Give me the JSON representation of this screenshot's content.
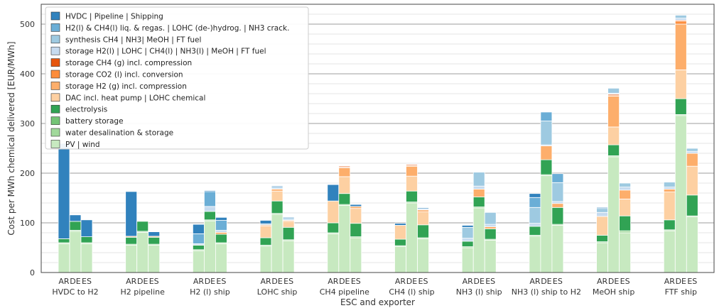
{
  "chart_data": {
    "type": "bar",
    "stacked": true,
    "xlabel": "ESC and exporter",
    "ylabel": "Cost per MWh chemical delivered [EUR/MWh]",
    "ylim": [
      0,
      540
    ],
    "yticks": [
      0,
      100,
      200,
      300,
      400,
      500
    ],
    "grid": "horizontal",
    "legend_position": "top-left",
    "exporters": [
      "AR",
      "DE",
      "ES"
    ],
    "groups": [
      "HVDC to H2",
      "H2 pipeline",
      "H2 (l) ship",
      "LOHC ship",
      "CH4 pipeline",
      "CH4 (l) ship",
      "NH3 (l) ship",
      "NH3 (l) ship to H2",
      "MeOH ship",
      "FTF ship"
    ],
    "series": [
      {
        "name": "PV | wind",
        "color": "#c7e9c0"
      },
      {
        "name": "water desalination & storage",
        "color": "#a1d99b"
      },
      {
        "name": "battery storage",
        "color": "#74c476"
      },
      {
        "name": "electrolysis",
        "color": "#31a354"
      },
      {
        "name": "DAC incl. heat pump | LOHC chemical",
        "color": "#fdd0a2"
      },
      {
        "name": "storage H2 (g) incl. compression",
        "color": "#fdae6b"
      },
      {
        "name": "storage CO2 (l) incl. conversion",
        "color": "#fd8d3c"
      },
      {
        "name": "storage CH4 (g) incl. compression",
        "color": "#e6550d"
      },
      {
        "name": "storage H2(l) | LOHC | CH4(l) | NH3(l) | MeOH | FT fuel",
        "color": "#c6dbef"
      },
      {
        "name": "synthesis CH4 | NH3| MeOH | FT fuel",
        "color": "#9ecae1"
      },
      {
        "name": "H2(l) & CH4(l) liq. & regas. | LOHC (de-)hydrog. | NH3 crack.",
        "color": "#6baed6"
      },
      {
        "name": "HVDC | Pipeline | Shipping",
        "color": "#3182bd"
      }
    ],
    "bars": [
      {
        "group": "HVDC to H2",
        "exporter": "AR",
        "values": [
          58,
          2,
          0,
          8,
          0,
          0,
          0,
          0,
          0,
          0,
          0,
          192
        ]
      },
      {
        "group": "HVDC to H2",
        "exporter": "DE",
        "values": [
          83,
          2,
          0,
          18,
          0,
          0,
          0,
          0,
          0,
          0,
          0,
          13
        ]
      },
      {
        "group": "HVDC to H2",
        "exporter": "ES",
        "values": [
          58,
          2,
          0,
          12,
          0,
          0,
          0,
          0,
          0,
          0,
          0,
          34
        ]
      },
      {
        "group": "H2 pipeline",
        "exporter": "AR",
        "values": [
          55,
          2,
          0,
          14,
          0,
          2,
          0,
          0,
          0,
          0,
          0,
          90
        ]
      },
      {
        "group": "H2 pipeline",
        "exporter": "DE",
        "values": [
          81,
          2,
          0,
          20,
          0,
          0,
          0,
          0,
          0,
          0,
          0,
          0
        ]
      },
      {
        "group": "H2 pipeline",
        "exporter": "ES",
        "values": [
          55,
          2,
          0,
          14,
          0,
          2,
          0,
          0,
          0,
          0,
          0,
          9
        ]
      },
      {
        "group": "H2 (l) ship",
        "exporter": "AR",
        "values": [
          44,
          2,
          0,
          9,
          0,
          0,
          0,
          0,
          3,
          0,
          20,
          19
        ]
      },
      {
        "group": "H2 (l) ship",
        "exporter": "DE",
        "values": [
          104,
          2,
          0,
          17,
          0,
          0,
          0,
          0,
          10,
          0,
          30,
          2
        ]
      },
      {
        "group": "H2 (l) ship",
        "exporter": "ES",
        "values": [
          58,
          2,
          0,
          17,
          0,
          4,
          0,
          0,
          4,
          0,
          20,
          6
        ]
      },
      {
        "group": "LOHC ship",
        "exporter": "AR",
        "values": [
          53,
          2,
          0,
          15,
          24,
          2,
          0,
          0,
          0,
          0,
          2,
          7
        ]
      },
      {
        "group": "LOHC ship",
        "exporter": "DE",
        "values": [
          117,
          2,
          0,
          25,
          20,
          4,
          0,
          0,
          2,
          0,
          2,
          2
        ]
      },
      {
        "group": "LOHC ship",
        "exporter": "ES",
        "values": [
          64,
          2,
          0,
          25,
          12,
          2,
          0,
          0,
          2,
          0,
          2,
          2
        ]
      },
      {
        "group": "CH4 pipeline",
        "exporter": "AR",
        "values": [
          78,
          2,
          0,
          20,
          44,
          0,
          0,
          0,
          0,
          0,
          0,
          33
        ]
      },
      {
        "group": "CH4 pipeline",
        "exporter": "DE",
        "values": [
          135,
          2,
          0,
          22,
          34,
          18,
          1,
          2,
          0,
          0,
          0,
          0
        ]
      },
      {
        "group": "CH4 pipeline",
        "exporter": "ES",
        "values": [
          70,
          2,
          0,
          27,
          30,
          4,
          0,
          0,
          0,
          0,
          0,
          4
        ]
      },
      {
        "group": "CH4 (l) ship",
        "exporter": "AR",
        "values": [
          52,
          2,
          0,
          13,
          28,
          0,
          0,
          0,
          0,
          0,
          0,
          4
        ]
      },
      {
        "group": "CH4 (l) ship",
        "exporter": "DE",
        "values": [
          140,
          2,
          0,
          22,
          30,
          20,
          1,
          2,
          0,
          0,
          0,
          0
        ]
      },
      {
        "group": "CH4 (l) ship",
        "exporter": "ES",
        "values": [
          68,
          2,
          0,
          26,
          26,
          4,
          0,
          0,
          2,
          0,
          0,
          2
        ]
      },
      {
        "group": "NH3 (l) ship",
        "exporter": "AR",
        "values": [
          50,
          2,
          0,
          11,
          0,
          0,
          0,
          0,
          6,
          22,
          0,
          4
        ]
      },
      {
        "group": "NH3 (l) ship",
        "exporter": "DE",
        "values": [
          130,
          2,
          0,
          20,
          0,
          16,
          0,
          0,
          6,
          28,
          0,
          0
        ]
      },
      {
        "group": "NH3 (l) ship",
        "exporter": "ES",
        "values": [
          65,
          2,
          0,
          21,
          0,
          4,
          0,
          0,
          5,
          24,
          0,
          0
        ]
      },
      {
        "group": "NH3 (l) ship to H2",
        "exporter": "AR",
        "values": [
          73,
          2,
          0,
          18,
          0,
          0,
          0,
          0,
          6,
          32,
          20,
          8
        ]
      },
      {
        "group": "NH3 (l) ship to H2",
        "exporter": "DE",
        "values": [
          195,
          2,
          0,
          30,
          0,
          28,
          0,
          0,
          2,
          48,
          18,
          0
        ]
      },
      {
        "group": "NH3 (l) ship to H2",
        "exporter": "ES",
        "values": [
          95,
          2,
          0,
          34,
          0,
          8,
          0,
          0,
          4,
          38,
          18,
          0
        ]
      },
      {
        "group": "MeOH ship",
        "exporter": "AR",
        "values": [
          60,
          2,
          0,
          13,
          38,
          0,
          0,
          0,
          8,
          8,
          0,
          2
        ]
      },
      {
        "group": "MeOH ship",
        "exporter": "DE",
        "values": [
          233,
          2,
          0,
          22,
          36,
          62,
          2,
          2,
          2,
          10,
          0,
          0
        ]
      },
      {
        "group": "MeOH ship",
        "exporter": "ES",
        "values": [
          80,
          4,
          0,
          30,
          34,
          18,
          0,
          0,
          6,
          8,
          0,
          0
        ]
      },
      {
        "group": "FTF ship",
        "exporter": "AR",
        "values": [
          84,
          2,
          0,
          20,
          56,
          6,
          0,
          0,
          4,
          10,
          0,
          0
        ]
      },
      {
        "group": "FTF ship",
        "exporter": "DE",
        "values": [
          316,
          2,
          0,
          32,
          58,
          92,
          6,
          2,
          4,
          6,
          0,
          0
        ]
      },
      {
        "group": "FTF ship",
        "exporter": "ES",
        "values": [
          112,
          2,
          0,
          42,
          58,
          26,
          0,
          0,
          4,
          6,
          0,
          0
        ]
      }
    ]
  }
}
